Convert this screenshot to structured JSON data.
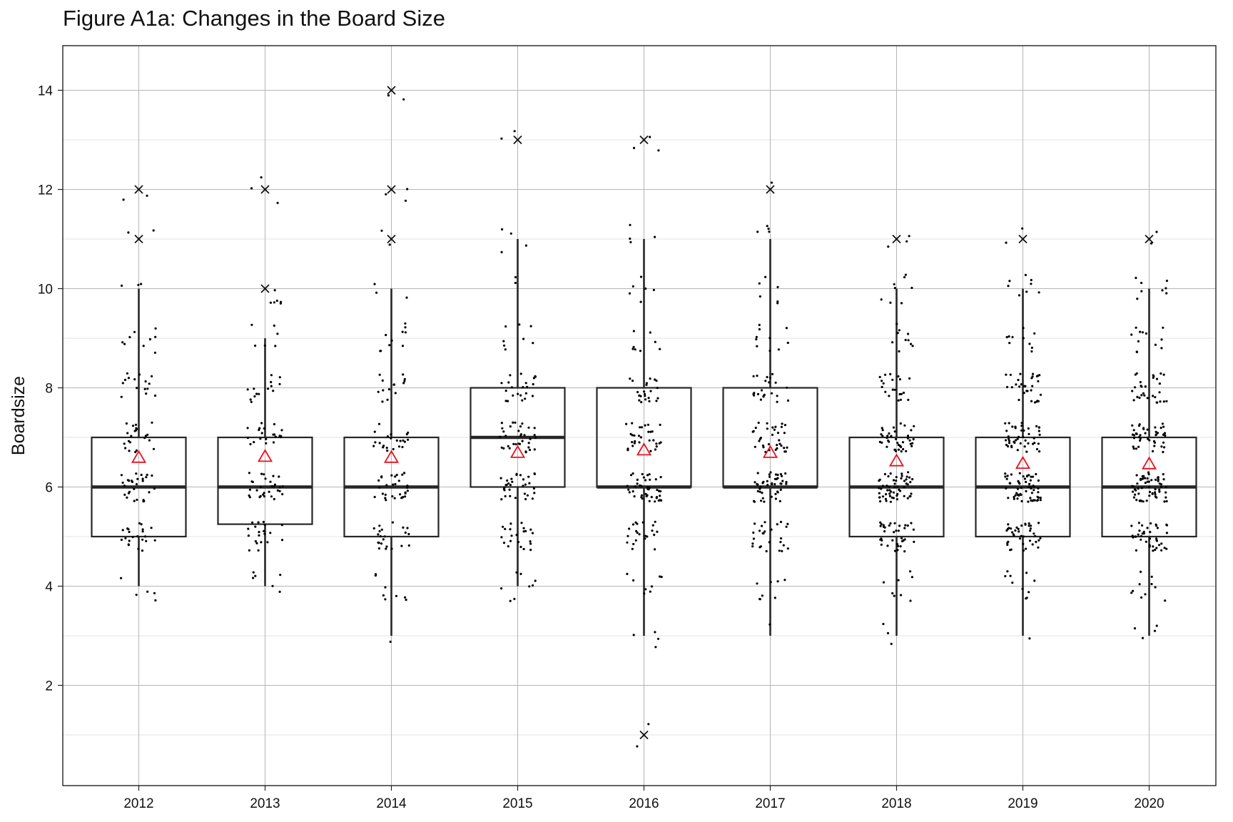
{
  "chart_data": {
    "type": "boxplot",
    "title": "Figure A1a: Changes in the Board Size",
    "xlabel": "",
    "ylabel": "Boardsize",
    "ylim": [
      0,
      15
    ],
    "grid": true,
    "yticks": [
      2,
      4,
      6,
      8,
      10,
      12,
      14
    ],
    "categories": [
      "2012",
      "2013",
      "2014",
      "2015",
      "2016",
      "2017",
      "2018",
      "2019",
      "2020"
    ],
    "boxes": [
      {
        "year": "2012",
        "whisker_low": 4,
        "q1": 5,
        "median": 6,
        "q3": 7,
        "whisker_high": 10,
        "mean": 6.6,
        "outliers": [
          11,
          12
        ]
      },
      {
        "year": "2013",
        "whisker_low": 4,
        "q1": 5.25,
        "median": 6,
        "q3": 7,
        "whisker_high": 9,
        "mean": 6.62,
        "outliers": [
          10,
          12
        ]
      },
      {
        "year": "2014",
        "whisker_low": 3,
        "q1": 5,
        "median": 6,
        "q3": 7,
        "whisker_high": 10,
        "mean": 6.6,
        "outliers": [
          11,
          12,
          14
        ]
      },
      {
        "year": "2015",
        "whisker_low": 4,
        "q1": 6,
        "median": 7,
        "q3": 8,
        "whisker_high": 11,
        "mean": 6.7,
        "outliers": [
          13
        ]
      },
      {
        "year": "2016",
        "whisker_low": 3,
        "q1": 6,
        "median": 6,
        "q3": 8,
        "whisker_high": 11,
        "mean": 6.75,
        "outliers": [
          1,
          13
        ]
      },
      {
        "year": "2017",
        "whisker_low": 3,
        "q1": 6,
        "median": 6,
        "q3": 8,
        "whisker_high": 11,
        "mean": 6.7,
        "outliers": [
          12
        ]
      },
      {
        "year": "2018",
        "whisker_low": 3,
        "q1": 5,
        "median": 6,
        "q3": 7,
        "whisker_high": 10,
        "mean": 6.53,
        "outliers": [
          11
        ]
      },
      {
        "year": "2019",
        "whisker_low": 3,
        "q1": 5,
        "median": 6,
        "q3": 7,
        "whisker_high": 10,
        "mean": 6.48,
        "outliers": [
          11
        ]
      },
      {
        "year": "2020",
        "whisker_low": 3,
        "q1": 5,
        "median": 6,
        "q3": 7,
        "whisker_high": 10,
        "mean": 6.47,
        "outliers": [
          11
        ]
      }
    ],
    "jitter_counts": [
      {
        "year": "2012",
        "values": {
          "4": 5,
          "5": 22,
          "6": 28,
          "7": 22,
          "8": 15,
          "9": 9,
          "10": 3,
          "11": 2,
          "12": 2
        }
      },
      {
        "year": "2013",
        "values": {
          "4": 6,
          "5": 20,
          "6": 30,
          "7": 22,
          "8": 14,
          "9": 6,
          "10": 6,
          "12": 3
        }
      },
      {
        "year": "2014",
        "values": {
          "3": 1,
          "4": 8,
          "5": 22,
          "6": 30,
          "7": 22,
          "8": 14,
          "9": 10,
          "10": 3,
          "11": 2,
          "12": 3,
          "14": 2
        }
      },
      {
        "year": "2015",
        "values": {
          "4": 8,
          "5": 22,
          "6": 32,
          "7": 34,
          "8": 22,
          "9": 8,
          "10": 2,
          "11": 4,
          "13": 2
        }
      },
      {
        "year": "2016",
        "values": {
          "1": 2,
          "3": 4,
          "4": 8,
          "5": 22,
          "6": 42,
          "7": 30,
          "8": 22,
          "9": 8,
          "10": 6,
          "11": 4,
          "13": 3
        }
      },
      {
        "year": "2017",
        "values": {
          "3": 1,
          "4": 8,
          "5": 26,
          "6": 44,
          "7": 34,
          "8": 22,
          "9": 10,
          "10": 6,
          "11": 4,
          "12": 1
        }
      },
      {
        "year": "2018",
        "values": {
          "3": 3,
          "4": 8,
          "5": 36,
          "6": 56,
          "7": 40,
          "8": 20,
          "9": 10,
          "10": 8,
          "11": 3
        }
      },
      {
        "year": "2019",
        "values": {
          "3": 1,
          "4": 10,
          "5": 40,
          "6": 60,
          "7": 44,
          "8": 30,
          "9": 10,
          "10": 8,
          "11": 2
        }
      },
      {
        "year": "2020",
        "values": {
          "3": 4,
          "4": 10,
          "5": 40,
          "6": 60,
          "7": 44,
          "8": 30,
          "9": 12,
          "10": 8,
          "11": 2
        }
      }
    ],
    "colors": {
      "box_outline": "#262626",
      "median": "#262626",
      "whisker": "#262626",
      "point": "#000000",
      "mean_marker": "#e8101e",
      "outlier": "#111111",
      "grid_major": "#b5b5b5",
      "grid_minor": "#dadada",
      "panel_border": "#222222"
    }
  }
}
